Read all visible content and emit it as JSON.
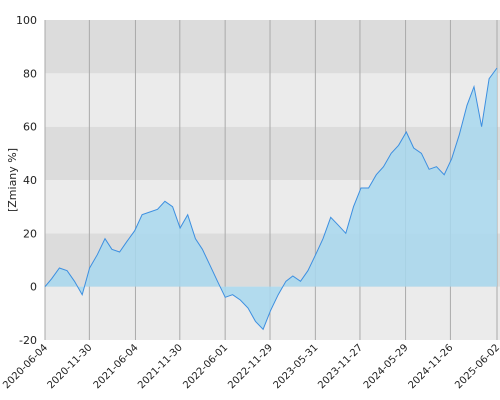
{
  "chart_data": {
    "type": "area",
    "y_label": "[Zmiany %]",
    "x": [
      "2020-06-04",
      "2020-07-01",
      "2020-08-01",
      "2020-09-01",
      "2020-10-01",
      "2020-11-01",
      "2020-12-01",
      "2021-01-01",
      "2021-02-01",
      "2021-03-01",
      "2021-04-01",
      "2021-05-01",
      "2021-06-01",
      "2021-07-01",
      "2021-08-01",
      "2021-09-01",
      "2021-10-01",
      "2021-11-01",
      "2021-12-01",
      "2022-01-01",
      "2022-02-01",
      "2022-03-01",
      "2022-04-01",
      "2022-05-01",
      "2022-06-01",
      "2022-07-01",
      "2022-08-01",
      "2022-09-01",
      "2022-10-01",
      "2022-11-01",
      "2022-12-01",
      "2023-01-01",
      "2023-02-01",
      "2023-03-01",
      "2023-04-01",
      "2023-05-01",
      "2023-06-01",
      "2023-07-01",
      "2023-08-01",
      "2023-09-01",
      "2023-10-01",
      "2023-11-01",
      "2023-12-01",
      "2024-01-01",
      "2024-02-01",
      "2024-03-01",
      "2024-04-01",
      "2024-05-01",
      "2024-06-01",
      "2024-07-01",
      "2024-08-01",
      "2024-09-01",
      "2024-10-01",
      "2024-11-01",
      "2024-12-01",
      "2025-01-01",
      "2025-02-01",
      "2025-03-01",
      "2025-04-01",
      "2025-05-01",
      "2025-06-02"
    ],
    "series": [
      {
        "color": "#3d8fe0",
        "fill": "#a8d8ef",
        "values": [
          0,
          3,
          7,
          6,
          2,
          -3,
          7,
          12,
          18,
          14,
          13,
          17,
          21,
          27,
          28,
          29,
          32,
          30,
          22,
          27,
          18,
          14,
          8,
          2,
          -4,
          -3,
          -5,
          -8,
          -13,
          -16,
          -9,
          -3,
          2,
          4,
          2,
          6,
          12,
          18,
          26,
          23,
          20,
          30,
          37,
          37,
          42,
          45,
          50,
          53,
          58,
          52,
          50,
          44,
          45,
          42,
          48,
          57,
          68,
          75,
          60,
          78,
          82
        ]
      }
    ],
    "xlim": [
      "2020-06-04",
      "2025-06-02"
    ],
    "xticks": [
      "2020-06-04",
      "2020-11-30",
      "2021-06-04",
      "2021-11-30",
      "2022-06-01",
      "2022-11-29",
      "2023-05-31",
      "2023-11-27",
      "2024-05-29",
      "2024-11-26",
      "2025-06-02"
    ],
    "ylim": [
      -20,
      100
    ],
    "yticks": [
      -20,
      0,
      20,
      40,
      60,
      80,
      100
    ],
    "grid": true
  }
}
